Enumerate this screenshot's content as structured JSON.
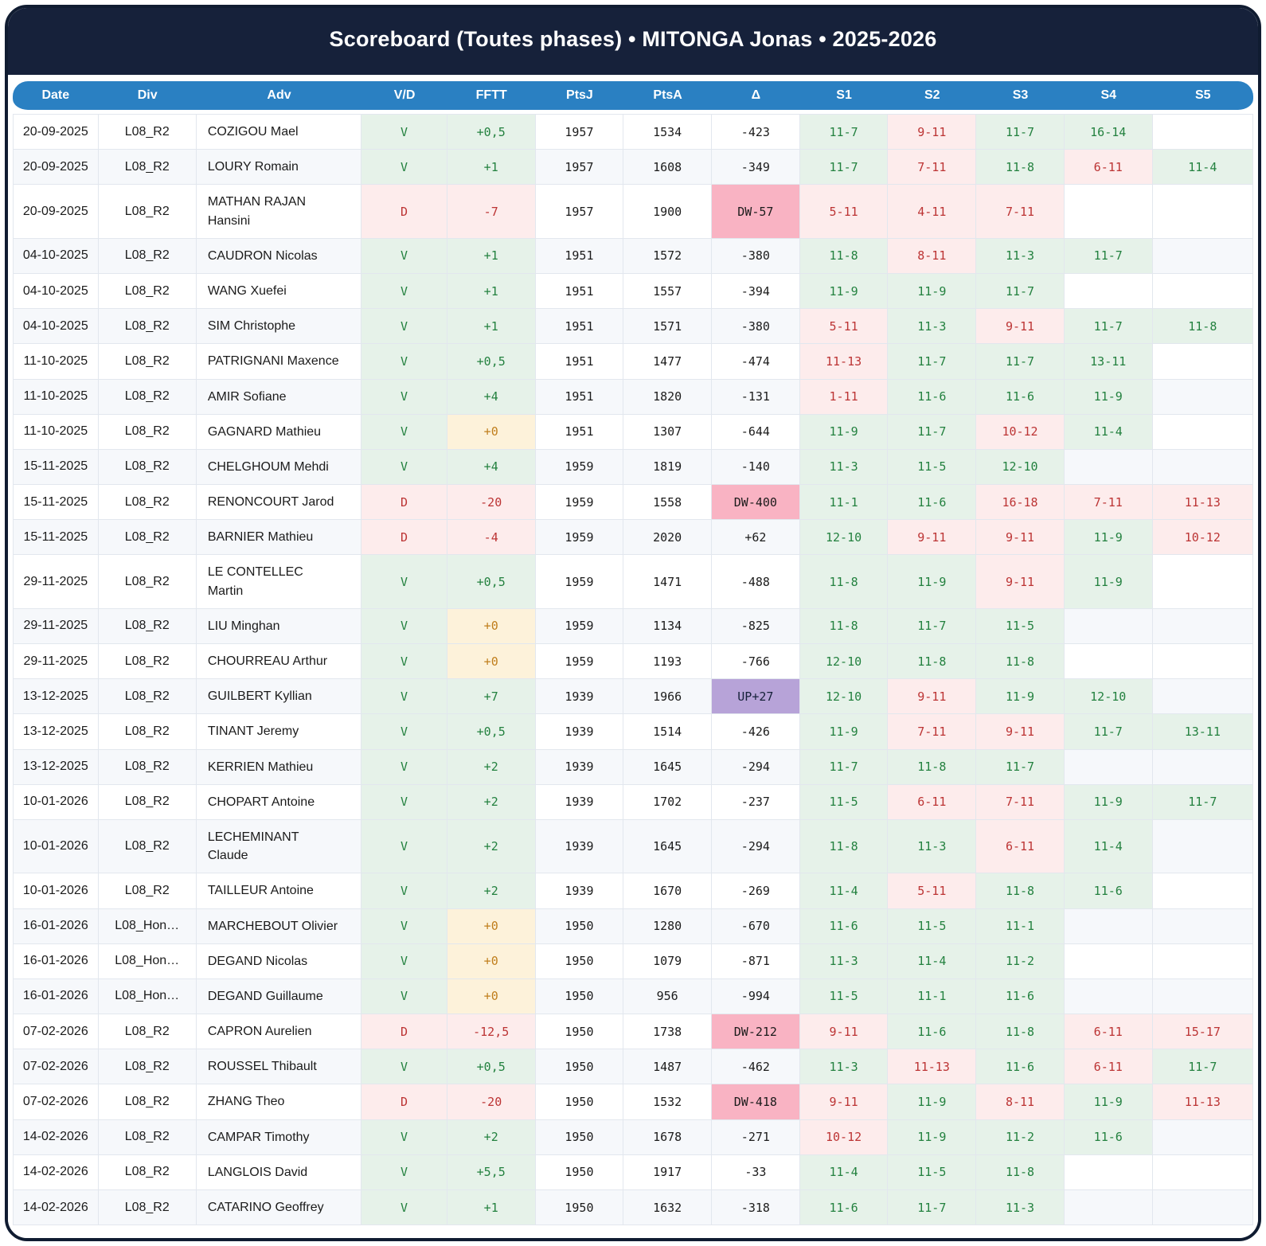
{
  "title": "Scoreboard (Toutes phases) • MITONGA Jonas • 2025-2026",
  "colors": {
    "title_bar_navy": "#16213a",
    "header_blue": "#2a80c2",
    "win_green_text": "#23813f",
    "win_green_bg": "#e6f2e9",
    "loss_red_text": "#bc3434",
    "loss_red_bg": "#fdecec",
    "zero_orange_text": "#c07e1c",
    "zero_orange_bg": "#fdf2da",
    "delta_down_pink_bg": "#f9b3c3",
    "delta_up_purple_bg": "#b7a3d8",
    "row_stripe": "#f6f8fb"
  },
  "table": {
    "columns": [
      "Date",
      "Div",
      "Adv",
      "V/D",
      "FFTT",
      "PtsJ",
      "PtsA",
      "Δ",
      "S1",
      "S2",
      "S3",
      "S4",
      "S5"
    ],
    "rows": [
      {
        "date": "20-09-2025",
        "div": "L08_R2",
        "adv": "COZIGOU Mael",
        "vd": "V",
        "fftt": "+0,5",
        "ptsj": "1957",
        "ptsa": "1534",
        "delta": "-423",
        "sets": [
          {
            "score": "11-7",
            "won": true
          },
          {
            "score": "9-11",
            "won": false
          },
          {
            "score": "11-7",
            "won": true
          },
          {
            "score": "16-14",
            "won": true
          }
        ]
      },
      {
        "date": "20-09-2025",
        "div": "L08_R2",
        "adv": "LOURY Romain",
        "vd": "V",
        "fftt": "+1",
        "ptsj": "1957",
        "ptsa": "1608",
        "delta": "-349",
        "sets": [
          {
            "score": "11-7",
            "won": true
          },
          {
            "score": "7-11",
            "won": false
          },
          {
            "score": "11-8",
            "won": true
          },
          {
            "score": "6-11",
            "won": false
          },
          {
            "score": "11-4",
            "won": true
          }
        ]
      },
      {
        "date": "20-09-2025",
        "div": "L08_R2",
        "adv": "MATHAN RAJAN\nHansini",
        "vd": "D",
        "fftt": "-7",
        "ptsj": "1957",
        "ptsa": "1900",
        "delta": "DW-57",
        "sets": [
          {
            "score": "5-11",
            "won": false
          },
          {
            "score": "4-11",
            "won": false
          },
          {
            "score": "7-11",
            "won": false
          }
        ]
      },
      {
        "date": "04-10-2025",
        "div": "L08_R2",
        "adv": "CAUDRON Nicolas",
        "vd": "V",
        "fftt": "+1",
        "ptsj": "1951",
        "ptsa": "1572",
        "delta": "-380",
        "sets": [
          {
            "score": "11-8",
            "won": true
          },
          {
            "score": "8-11",
            "won": false
          },
          {
            "score": "11-3",
            "won": true
          },
          {
            "score": "11-7",
            "won": true
          }
        ]
      },
      {
        "date": "04-10-2025",
        "div": "L08_R2",
        "adv": "WANG Xuefei",
        "vd": "V",
        "fftt": "+1",
        "ptsj": "1951",
        "ptsa": "1557",
        "delta": "-394",
        "sets": [
          {
            "score": "11-9",
            "won": true
          },
          {
            "score": "11-9",
            "won": true
          },
          {
            "score": "11-7",
            "won": true
          }
        ]
      },
      {
        "date": "04-10-2025",
        "div": "L08_R2",
        "adv": "SIM Christophe",
        "vd": "V",
        "fftt": "+1",
        "ptsj": "1951",
        "ptsa": "1571",
        "delta": "-380",
        "sets": [
          {
            "score": "5-11",
            "won": false
          },
          {
            "score": "11-3",
            "won": true
          },
          {
            "score": "9-11",
            "won": false
          },
          {
            "score": "11-7",
            "won": true
          },
          {
            "score": "11-8",
            "won": true
          }
        ]
      },
      {
        "date": "11-10-2025",
        "div": "L08_R2",
        "adv": "PATRIGNANI Maxence",
        "vd": "V",
        "fftt": "+0,5",
        "ptsj": "1951",
        "ptsa": "1477",
        "delta": "-474",
        "sets": [
          {
            "score": "11-13",
            "won": false
          },
          {
            "score": "11-7",
            "won": true
          },
          {
            "score": "11-7",
            "won": true
          },
          {
            "score": "13-11",
            "won": true
          }
        ]
      },
      {
        "date": "11-10-2025",
        "div": "L08_R2",
        "adv": "AMIR Sofiane",
        "vd": "V",
        "fftt": "+4",
        "ptsj": "1951",
        "ptsa": "1820",
        "delta": "-131",
        "sets": [
          {
            "score": "1-11",
            "won": false
          },
          {
            "score": "11-6",
            "won": true
          },
          {
            "score": "11-6",
            "won": true
          },
          {
            "score": "11-9",
            "won": true
          }
        ]
      },
      {
        "date": "11-10-2025",
        "div": "L08_R2",
        "adv": "GAGNARD Mathieu",
        "vd": "V",
        "fftt": "+0",
        "ptsj": "1951",
        "ptsa": "1307",
        "delta": "-644",
        "sets": [
          {
            "score": "11-9",
            "won": true
          },
          {
            "score": "11-7",
            "won": true
          },
          {
            "score": "10-12",
            "won": false
          },
          {
            "score": "11-4",
            "won": true
          }
        ]
      },
      {
        "date": "15-11-2025",
        "div": "L08_R2",
        "adv": "CHELGHOUM Mehdi",
        "vd": "V",
        "fftt": "+4",
        "ptsj": "1959",
        "ptsa": "1819",
        "delta": "-140",
        "sets": [
          {
            "score": "11-3",
            "won": true
          },
          {
            "score": "11-5",
            "won": true
          },
          {
            "score": "12-10",
            "won": true
          }
        ]
      },
      {
        "date": "15-11-2025",
        "div": "L08_R2",
        "adv": "RENONCOURT Jarod",
        "vd": "D",
        "fftt": "-20",
        "ptsj": "1959",
        "ptsa": "1558",
        "delta": "DW-400",
        "sets": [
          {
            "score": "11-1",
            "won": true
          },
          {
            "score": "11-6",
            "won": true
          },
          {
            "score": "16-18",
            "won": false
          },
          {
            "score": "7-11",
            "won": false
          },
          {
            "score": "11-13",
            "won": false
          }
        ]
      },
      {
        "date": "15-11-2025",
        "div": "L08_R2",
        "adv": "BARNIER Mathieu",
        "vd": "D",
        "fftt": "-4",
        "ptsj": "1959",
        "ptsa": "2020",
        "delta": "+62",
        "sets": [
          {
            "score": "12-10",
            "won": true
          },
          {
            "score": "9-11",
            "won": false
          },
          {
            "score": "9-11",
            "won": false
          },
          {
            "score": "11-9",
            "won": true
          },
          {
            "score": "10-12",
            "won": false
          }
        ]
      },
      {
        "date": "29-11-2025",
        "div": "L08_R2",
        "adv": "LE CONTELLEC\nMartin",
        "vd": "V",
        "fftt": "+0,5",
        "ptsj": "1959",
        "ptsa": "1471",
        "delta": "-488",
        "sets": [
          {
            "score": "11-8",
            "won": true
          },
          {
            "score": "11-9",
            "won": true
          },
          {
            "score": "9-11",
            "won": false
          },
          {
            "score": "11-9",
            "won": true
          }
        ]
      },
      {
        "date": "29-11-2025",
        "div": "L08_R2",
        "adv": "LIU Minghan",
        "vd": "V",
        "fftt": "+0",
        "ptsj": "1959",
        "ptsa": "1134",
        "delta": "-825",
        "sets": [
          {
            "score": "11-8",
            "won": true
          },
          {
            "score": "11-7",
            "won": true
          },
          {
            "score": "11-5",
            "won": true
          }
        ]
      },
      {
        "date": "29-11-2025",
        "div": "L08_R2",
        "adv": "CHOURREAU Arthur",
        "vd": "V",
        "fftt": "+0",
        "ptsj": "1959",
        "ptsa": "1193",
        "delta": "-766",
        "sets": [
          {
            "score": "12-10",
            "won": true
          },
          {
            "score": "11-8",
            "won": true
          },
          {
            "score": "11-8",
            "won": true
          }
        ]
      },
      {
        "date": "13-12-2025",
        "div": "L08_R2",
        "adv": "GUILBERT Kyllian",
        "vd": "V",
        "fftt": "+7",
        "ptsj": "1939",
        "ptsa": "1966",
        "delta": "UP+27",
        "sets": [
          {
            "score": "12-10",
            "won": true
          },
          {
            "score": "9-11",
            "won": false
          },
          {
            "score": "11-9",
            "won": true
          },
          {
            "score": "12-10",
            "won": true
          }
        ]
      },
      {
        "date": "13-12-2025",
        "div": "L08_R2",
        "adv": "TINANT Jeremy",
        "vd": "V",
        "fftt": "+0,5",
        "ptsj": "1939",
        "ptsa": "1514",
        "delta": "-426",
        "sets": [
          {
            "score": "11-9",
            "won": true
          },
          {
            "score": "7-11",
            "won": false
          },
          {
            "score": "9-11",
            "won": false
          },
          {
            "score": "11-7",
            "won": true
          },
          {
            "score": "13-11",
            "won": true
          }
        ]
      },
      {
        "date": "13-12-2025",
        "div": "L08_R2",
        "adv": "KERRIEN Mathieu",
        "vd": "V",
        "fftt": "+2",
        "ptsj": "1939",
        "ptsa": "1645",
        "delta": "-294",
        "sets": [
          {
            "score": "11-7",
            "won": true
          },
          {
            "score": "11-8",
            "won": true
          },
          {
            "score": "11-7",
            "won": true
          }
        ]
      },
      {
        "date": "10-01-2026",
        "div": "L08_R2",
        "adv": "CHOPART Antoine",
        "vd": "V",
        "fftt": "+2",
        "ptsj": "1939",
        "ptsa": "1702",
        "delta": "-237",
        "sets": [
          {
            "score": "11-5",
            "won": true
          },
          {
            "score": "6-11",
            "won": false
          },
          {
            "score": "7-11",
            "won": false
          },
          {
            "score": "11-9",
            "won": true
          },
          {
            "score": "11-7",
            "won": true
          }
        ]
      },
      {
        "date": "10-01-2026",
        "div": "L08_R2",
        "adv": "LECHEMINANT\nClaude",
        "vd": "V",
        "fftt": "+2",
        "ptsj": "1939",
        "ptsa": "1645",
        "delta": "-294",
        "sets": [
          {
            "score": "11-8",
            "won": true
          },
          {
            "score": "11-3",
            "won": true
          },
          {
            "score": "6-11",
            "won": false
          },
          {
            "score": "11-4",
            "won": true
          }
        ]
      },
      {
        "date": "10-01-2026",
        "div": "L08_R2",
        "adv": "TAILLEUR Antoine",
        "vd": "V",
        "fftt": "+2",
        "ptsj": "1939",
        "ptsa": "1670",
        "delta": "-269",
        "sets": [
          {
            "score": "11-4",
            "won": true
          },
          {
            "score": "5-11",
            "won": false
          },
          {
            "score": "11-8",
            "won": true
          },
          {
            "score": "11-6",
            "won": true
          }
        ]
      },
      {
        "date": "16-01-2026",
        "div": "L08_Hon…",
        "adv": "MARCHEBOUT Olivier",
        "vd": "V",
        "fftt": "+0",
        "ptsj": "1950",
        "ptsa": "1280",
        "delta": "-670",
        "sets": [
          {
            "score": "11-6",
            "won": true
          },
          {
            "score": "11-5",
            "won": true
          },
          {
            "score": "11-1",
            "won": true
          }
        ]
      },
      {
        "date": "16-01-2026",
        "div": "L08_Hon…",
        "adv": "DEGAND Nicolas",
        "vd": "V",
        "fftt": "+0",
        "ptsj": "1950",
        "ptsa": "1079",
        "delta": "-871",
        "sets": [
          {
            "score": "11-3",
            "won": true
          },
          {
            "score": "11-4",
            "won": true
          },
          {
            "score": "11-2",
            "won": true
          }
        ]
      },
      {
        "date": "16-01-2026",
        "div": "L08_Hon…",
        "adv": "DEGAND Guillaume",
        "vd": "V",
        "fftt": "+0",
        "ptsj": "1950",
        "ptsa": "956",
        "delta": "-994",
        "sets": [
          {
            "score": "11-5",
            "won": true
          },
          {
            "score": "11-1",
            "won": true
          },
          {
            "score": "11-6",
            "won": true
          }
        ]
      },
      {
        "date": "07-02-2026",
        "div": "L08_R2",
        "adv": "CAPRON Aurelien",
        "vd": "D",
        "fftt": "-12,5",
        "ptsj": "1950",
        "ptsa": "1738",
        "delta": "DW-212",
        "sets": [
          {
            "score": "9-11",
            "won": false
          },
          {
            "score": "11-6",
            "won": true
          },
          {
            "score": "11-8",
            "won": true
          },
          {
            "score": "6-11",
            "won": false
          },
          {
            "score": "15-17",
            "won": false
          }
        ]
      },
      {
        "date": "07-02-2026",
        "div": "L08_R2",
        "adv": "ROUSSEL Thibault",
        "vd": "V",
        "fftt": "+0,5",
        "ptsj": "1950",
        "ptsa": "1487",
        "delta": "-462",
        "sets": [
          {
            "score": "11-3",
            "won": true
          },
          {
            "score": "11-13",
            "won": false
          },
          {
            "score": "11-6",
            "won": true
          },
          {
            "score": "6-11",
            "won": false
          },
          {
            "score": "11-7",
            "won": true
          }
        ]
      },
      {
        "date": "07-02-2026",
        "div": "L08_R2",
        "adv": "ZHANG Theo",
        "vd": "D",
        "fftt": "-20",
        "ptsj": "1950",
        "ptsa": "1532",
        "delta": "DW-418",
        "sets": [
          {
            "score": "9-11",
            "won": false
          },
          {
            "score": "11-9",
            "won": true
          },
          {
            "score": "8-11",
            "won": false
          },
          {
            "score": "11-9",
            "won": true
          },
          {
            "score": "11-13",
            "won": false
          }
        ]
      },
      {
        "date": "14-02-2026",
        "div": "L08_R2",
        "adv": "CAMPAR Timothy",
        "vd": "V",
        "fftt": "+2",
        "ptsj": "1950",
        "ptsa": "1678",
        "delta": "-271",
        "sets": [
          {
            "score": "10-12",
            "won": false
          },
          {
            "score": "11-9",
            "won": true
          },
          {
            "score": "11-2",
            "won": true
          },
          {
            "score": "11-6",
            "won": true
          }
        ]
      },
      {
        "date": "14-02-2026",
        "div": "L08_R2",
        "adv": "LANGLOIS David",
        "vd": "V",
        "fftt": "+5,5",
        "ptsj": "1950",
        "ptsa": "1917",
        "delta": "-33",
        "sets": [
          {
            "score": "11-4",
            "won": true
          },
          {
            "score": "11-5",
            "won": true
          },
          {
            "score": "11-8",
            "won": true
          }
        ]
      },
      {
        "date": "14-02-2026",
        "div": "L08_R2",
        "adv": "CATARINO Geoffrey",
        "vd": "V",
        "fftt": "+1",
        "ptsj": "1950",
        "ptsa": "1632",
        "delta": "-318",
        "sets": [
          {
            "score": "11-6",
            "won": true
          },
          {
            "score": "11-7",
            "won": true
          },
          {
            "score": "11-3",
            "won": true
          }
        ]
      }
    ]
  }
}
